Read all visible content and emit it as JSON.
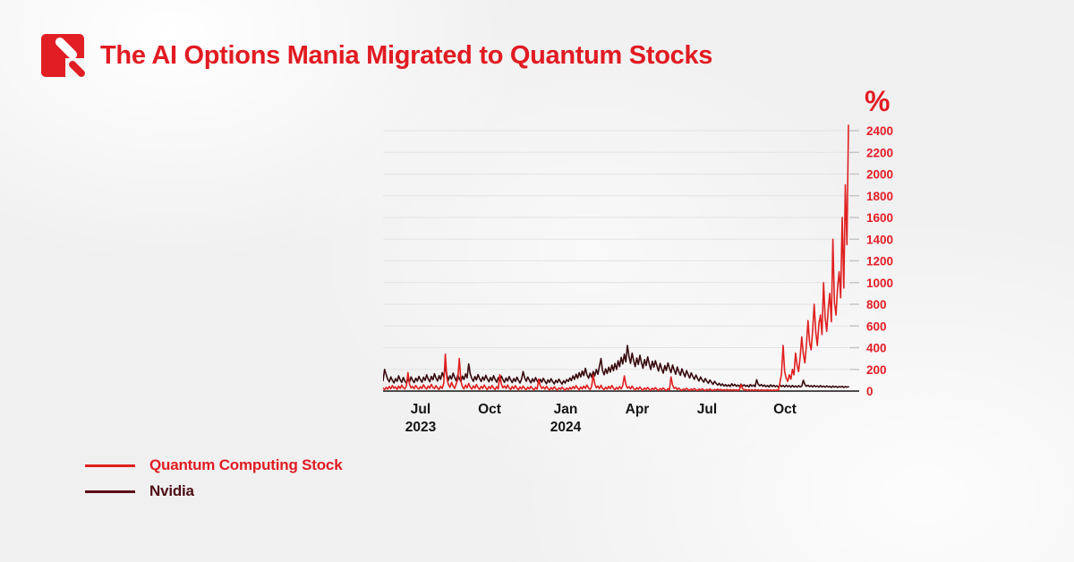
{
  "header": {
    "title": "The AI Options Mania Migrated to Quantum Stocks",
    "title_color": "#e11b22"
  },
  "brand": {
    "logo_color": "#e01e24"
  },
  "colors": {
    "accent_red": "#e21d25",
    "quantum_line": "#e02020",
    "nvidia_line": "#380a0e",
    "grid": "#e3e3e4",
    "axis": "#4d4d4d",
    "tick": "#c4c4c6",
    "xlabel": "#141414"
  },
  "legend": {
    "items": [
      {
        "label": "Quantum Computing Stock",
        "swatch": "#e02020",
        "text_color": "#e11b22"
      },
      {
        "label": "Nvidia",
        "swatch": "#5a0e14",
        "text_color": "#4d0e13"
      }
    ]
  },
  "chart_data": {
    "type": "line",
    "title": "The AI Options Mania Migrated to Quantum Stocks",
    "ylabel_symbol": "%",
    "x_range": [
      "May 2023",
      "Dec 2024"
    ],
    "ylim": [
      0,
      2500
    ],
    "grid": true,
    "legend_position": "bottom-left",
    "yticks": [
      0,
      200,
      400,
      600,
      800,
      1000,
      1200,
      1400,
      1600,
      1800,
      2000,
      2200,
      2400
    ],
    "xticks": [
      {
        "label": "Jul",
        "year": "2023",
        "pos": 0.0808
      },
      {
        "label": "Oct",
        "year": "",
        "pos": 0.2288
      },
      {
        "label": "Jan",
        "year": "2024",
        "pos": 0.3923
      },
      {
        "label": "Apr",
        "year": "",
        "pos": 0.5462
      },
      {
        "label": "Jul",
        "year": "",
        "pos": 0.6962
      },
      {
        "label": "Oct",
        "year": "",
        "pos": 0.8635
      }
    ],
    "series": [
      {
        "name": "Quantum Computing Stock",
        "color": "#e02020",
        "values": [
          28,
          12,
          35,
          18,
          42,
          22,
          50,
          26,
          38,
          16,
          45,
          24,
          55,
          30,
          20,
          48,
          170,
          60,
          28,
          44,
          22,
          52,
          30,
          18,
          40,
          24,
          58,
          32,
          20,
          46,
          26,
          62,
          34,
          22,
          50,
          28,
          16,
          44,
          25,
          70,
          340,
          120,
          60,
          35,
          80,
          45,
          25,
          65,
          110,
          300,
          90,
          40,
          20,
          55,
          30,
          70,
          36,
          18,
          48,
          26,
          60,
          32,
          16,
          44,
          24,
          56,
          30,
          14,
          42,
          22,
          52,
          28,
          14,
          40,
          20,
          150,
          64,
          30,
          48,
          24,
          56,
          28,
          14,
          42,
          22,
          50,
          26,
          12,
          38,
          20,
          46,
          24,
          12,
          36,
          18,
          44,
          22,
          10,
          34,
          18,
          110,
          50,
          24,
          38,
          18,
          44,
          22,
          10,
          32,
          16,
          40,
          20,
          10,
          30,
          16,
          36,
          18,
          8,
          28,
          14,
          34,
          18,
          42,
          22,
          50,
          26,
          12,
          38,
          20,
          46,
          24,
          56,
          28,
          14,
          40,
          150,
          66,
          30,
          46,
          22,
          54,
          26,
          12,
          36,
          18,
          44,
          22,
          52,
          26,
          12,
          34,
          17,
          42,
          20,
          50,
          140,
          60,
          28,
          40,
          20,
          46,
          22,
          10,
          32,
          16,
          38,
          18,
          8,
          28,
          14,
          34,
          16,
          8,
          26,
          12,
          32,
          15,
          7,
          24,
          12,
          30,
          14,
          6,
          22,
          10,
          130,
          55,
          24,
          34,
          14,
          28,
          12,
          6,
          20,
          10,
          26,
          12,
          6,
          20,
          10,
          24,
          11,
          5,
          18,
          9,
          22,
          10,
          5,
          16,
          8,
          20,
          9,
          5,
          15,
          8,
          18,
          8,
          16,
          7,
          14,
          6,
          15,
          7,
          13,
          6,
          14,
          7,
          12,
          6,
          16,
          60,
          24,
          10,
          14,
          6,
          13,
          6,
          12,
          5,
          14,
          7,
          12,
          5,
          12,
          6,
          11,
          5,
          12,
          6,
          10,
          5,
          11,
          5,
          10,
          6,
          80,
          160,
          420,
          180,
          120,
          90,
          150,
          110,
          200,
          150,
          350,
          240,
          180,
          320,
          500,
          340,
          260,
          420,
          650,
          450,
          380,
          560,
          800,
          540,
          420,
          620,
          700,
          520,
          1000,
          680,
          550,
          760,
          900,
          640,
          1400,
          820,
          700,
          950,
          1100,
          860,
          1600,
          950,
          1900,
          1350,
          2450
        ]
      },
      {
        "name": "Nvidia",
        "color": "#380a0e",
        "values": [
          95,
          200,
          150,
          110,
          85,
          130,
          100,
          75,
          115,
          90,
          140,
          105,
          80,
          125,
          95,
          70,
          110,
          85,
          130,
          100,
          78,
          118,
          92,
          135,
          105,
          82,
          128,
          98,
          150,
          112,
          86,
          135,
          104,
          160,
          120,
          92,
          142,
          108,
          170,
          130,
          230,
          150,
          100,
          140,
          110,
          165,
          125,
          95,
          148,
          115,
          88,
          138,
          106,
          158,
          122,
          250,
          160,
          118,
          90,
          134,
          102,
          152,
          116,
          88,
          130,
          100,
          145,
          112,
          86,
          126,
          96,
          142,
          108,
          82,
          124,
          94,
          138,
          106,
          80,
          120,
          92,
          134,
          102,
          78,
          116,
          88,
          128,
          98,
          74,
          112,
          180,
          120,
          90,
          130,
          100,
          76,
          114,
          86,
          124,
          94,
          72,
          108,
          82,
          118,
          90,
          68,
          104,
          80,
          114,
          86,
          66,
          100,
          78,
          110,
          84,
          64,
          96,
          74,
          106,
          88,
          120,
          96,
          140,
          108,
          156,
          118,
          170,
          130,
          185,
          142,
          210,
          150,
          118,
          165,
          128,
          180,
          140,
          200,
          155,
          225,
          300,
          190,
          150,
          205,
          162,
          220,
          175,
          240,
          188,
          255,
          200,
          280,
          225,
          310,
          250,
          340,
          270,
          420,
          320,
          255,
          350,
          280,
          225,
          305,
          245,
          330,
          262,
          210,
          290,
          235,
          315,
          250,
          200,
          275,
          220,
          280,
          230,
          185,
          255,
          205,
          165,
          235,
          190,
          260,
          210,
          170,
          240,
          195,
          155,
          222,
          180,
          145,
          205,
          165,
          132,
          188,
          152,
          120,
          168,
          135,
          108,
          148,
          118,
          92,
          130,
          104,
          82,
          116,
          92,
          72,
          102,
          80,
          62,
          90,
          70,
          55,
          72,
          50,
          66,
          46,
          60,
          44,
          58,
          42,
          68,
          48,
          62,
          44,
          56,
          40,
          64,
          46,
          58,
          42,
          54,
          38,
          60,
          44,
          56,
          40,
          105,
          64,
          48,
          60,
          44,
          56,
          40,
          52,
          38,
          58,
          42,
          54,
          40,
          50,
          36,
          56,
          42,
          52,
          38,
          54,
          40,
          50,
          36,
          52,
          38,
          48,
          36,
          50,
          38,
          46,
          100,
          60,
          44,
          54,
          40,
          50,
          38,
          52,
          40,
          48,
          36,
          50,
          38,
          46,
          36,
          48,
          38,
          44,
          34,
          46,
          36,
          44,
          34,
          42,
          36,
          44,
          34,
          42,
          36,
          40
        ]
      }
    ]
  }
}
